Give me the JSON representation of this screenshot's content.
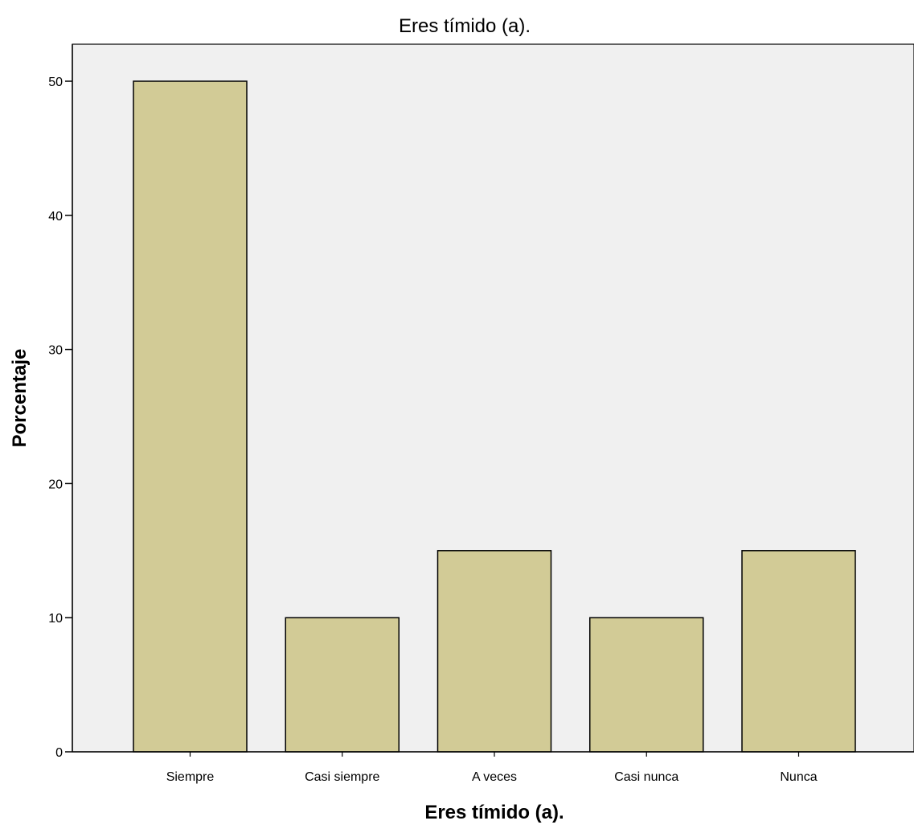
{
  "chart_data": {
    "type": "bar",
    "title": "Eres tímido (a).",
    "xlabel": "Eres tímido (a).",
    "ylabel": "Porcentaje",
    "categories": [
      "Siempre",
      "Casi siempre",
      "A veces",
      "Casi nunca",
      "Nunca"
    ],
    "values": [
      50,
      10,
      15,
      10,
      15
    ],
    "ylim": [
      0,
      50
    ],
    "yticks": [
      0,
      10,
      20,
      30,
      40,
      50
    ],
    "grid": false,
    "legend": "none",
    "colors": {
      "bar_fill": "#d2cb96",
      "bar_stroke": "#000000",
      "plot_background": "#f0f0f0",
      "axis": "#000000"
    }
  }
}
